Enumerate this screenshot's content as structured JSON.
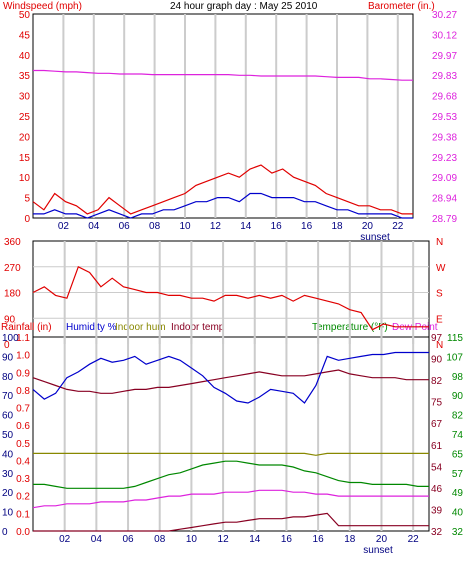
{
  "colors": {
    "red": "#e00000",
    "blue": "#0000cc",
    "magenta": "#dd22dd",
    "olive": "#888800",
    "green": "#008800",
    "maroon": "#880022",
    "purple": "#6600aa",
    "navy": "#000080",
    "grid": "#cccccc",
    "text": "#000000"
  },
  "chart_data": [
    {
      "type": "line",
      "title": "24 hour graph day : May 25 2010",
      "ylabel_left": "Windspeed (mph)",
      "ylabel_right": "Barometer (in.)",
      "y_left_ticks": [
        "50",
        "45",
        "40",
        "35",
        "30",
        "25",
        "20",
        "15",
        "10",
        "5",
        "0"
      ],
      "y_right_ticks": [
        "30.27",
        "30.12",
        "29.97",
        "29.83",
        "29.68",
        "29.53",
        "29.38",
        "29.23",
        "29.09",
        "28.94",
        "28.79"
      ],
      "ylim_left": [
        0,
        50
      ],
      "ylim_right": [
        28.79,
        30.27
      ],
      "x_ticks": [
        "02",
        "04",
        "06",
        "08",
        "10",
        "12",
        "14",
        "16",
        "16",
        "18",
        "20",
        "22"
      ],
      "x_label": "sunset",
      "series": [
        {
          "name": "Windspeed (mph)",
          "color": "red",
          "values": [
            4,
            2,
            6,
            4,
            3,
            1,
            2,
            5,
            3,
            1,
            2,
            3,
            4,
            5,
            6,
            8,
            9,
            10,
            11,
            10,
            12,
            13,
            11,
            12,
            10,
            9,
            8,
            6,
            5,
            4,
            3,
            3,
            2,
            2,
            1,
            1
          ]
        },
        {
          "name": "Wind gust",
          "color": "blue",
          "values": [
            1,
            1,
            2,
            1,
            1,
            0,
            1,
            2,
            1,
            0,
            1,
            1,
            2,
            2,
            3,
            4,
            4,
            5,
            5,
            4,
            6,
            6,
            5,
            5,
            5,
            4,
            4,
            3,
            2,
            2,
            1,
            1,
            1,
            1,
            0,
            0
          ]
        },
        {
          "name": "Barometer (in.)",
          "color": "magenta",
          "values": [
            29.86,
            29.86,
            29.855,
            29.85,
            29.85,
            29.845,
            29.84,
            29.84,
            29.835,
            29.835,
            29.835,
            29.83,
            29.83,
            29.83,
            29.83,
            29.83,
            29.83,
            29.83,
            29.83,
            29.825,
            29.825,
            29.82,
            29.82,
            29.82,
            29.82,
            29.82,
            29.82,
            29.815,
            29.81,
            29.81,
            29.81,
            29.8,
            29.8,
            29.795,
            29.79,
            29.79
          ]
        }
      ]
    },
    {
      "type": "line",
      "y_left_ticks": [
        "360",
        "270",
        "180",
        "90",
        "0"
      ],
      "y_right_ticks": [
        "N",
        "W",
        "S",
        "E",
        "N"
      ],
      "ylim": [
        0,
        360
      ],
      "series": [
        {
          "name": "Wind direction",
          "color": "red",
          "values": [
            180,
            200,
            170,
            160,
            270,
            250,
            200,
            230,
            200,
            190,
            180,
            180,
            170,
            170,
            160,
            160,
            150,
            170,
            170,
            160,
            170,
            160,
            170,
            150,
            170,
            160,
            150,
            140,
            120,
            110,
            50,
            70,
            60,
            60,
            60,
            60
          ]
        }
      ]
    },
    {
      "type": "line",
      "legend": [
        "Rainfall (in)",
        "Humidity %",
        "Indoor hum",
        "Indoor temp",
        "Temperature (°F)",
        "Dew Point"
      ],
      "y_left_ticks": [
        "100",
        "90",
        "80",
        "70",
        "60",
        "50",
        "40",
        "30",
        "20",
        "10",
        "0"
      ],
      "y_rain_ticks": [
        "1.1",
        "1.0",
        "0.9",
        "0.8",
        "0.7",
        "0.6",
        "0.5",
        "0.4",
        "0.3",
        "0.2",
        "0.1",
        "0.0"
      ],
      "y_right_ticks_a": [
        "115",
        "107",
        "98",
        "90",
        "82",
        "74",
        "65",
        "57",
        "49",
        "40",
        "32"
      ],
      "y_right_ticks_b": [
        "97",
        "90",
        "82",
        "75",
        "67",
        "61",
        "54",
        "46",
        "39",
        "32"
      ],
      "ylim_left": [
        0,
        100
      ],
      "ylim_right": [
        32,
        115
      ],
      "x_ticks": [
        "02",
        "04",
        "06",
        "08",
        "10",
        "12",
        "14",
        "16",
        "16",
        "18",
        "20",
        "22"
      ],
      "x_label": "sunset",
      "series": [
        {
          "name": "Humidity %",
          "color": "blue",
          "values": [
            73,
            68,
            71,
            79,
            82,
            86,
            89,
            87,
            88,
            90,
            86,
            88,
            90,
            88,
            84,
            80,
            74,
            71,
            67,
            66,
            69,
            73,
            72,
            71,
            66,
            75,
            90,
            88,
            89,
            90,
            91,
            91,
            92,
            92,
            92,
            92
          ]
        },
        {
          "name": "Indoor hum",
          "color": "olive",
          "values": [
            40,
            40,
            40,
            40,
            40,
            40,
            40,
            40,
            40,
            40,
            40,
            40,
            40,
            40,
            40,
            40,
            40,
            40,
            40,
            40,
            40,
            40,
            40,
            40,
            40,
            39,
            40,
            40,
            40,
            40,
            40,
            40,
            40,
            40,
            40,
            40
          ]
        },
        {
          "name": "Indoor temp",
          "color": "maroon",
          "values": [
            79,
            77,
            75,
            73,
            72,
            72,
            71,
            71,
            72,
            73,
            73,
            74,
            74,
            75,
            76,
            77,
            78,
            79,
            80,
            81,
            82,
            81,
            80,
            80,
            80,
            81,
            82,
            83,
            81,
            80,
            79,
            79,
            79,
            78,
            78,
            78
          ]
        },
        {
          "name": "Temperature (°F)",
          "color": "green",
          "values": [
            24,
            24,
            23,
            22,
            22,
            22,
            22,
            22,
            22,
            23,
            25,
            27,
            29,
            30,
            32,
            34,
            35,
            36,
            36,
            35,
            34,
            34,
            34,
            33,
            31,
            30,
            28,
            26,
            25,
            25,
            24,
            24,
            24,
            24,
            23,
            23
          ]
        },
        {
          "name": "Dew Point",
          "color": "magenta",
          "values": [
            12,
            13,
            13,
            14,
            14,
            14,
            15,
            15,
            15,
            16,
            16,
            17,
            18,
            18,
            19,
            19,
            19,
            20,
            20,
            20,
            21,
            21,
            21,
            20,
            20,
            19,
            19,
            18,
            18,
            18,
            18,
            18,
            18,
            18,
            18,
            18
          ]
        },
        {
          "name": "Rainfall (in)",
          "color": "maroon_rain",
          "values": [
            0,
            0,
            0,
            0,
            0,
            0,
            0,
            0,
            0,
            0,
            0,
            0,
            0,
            0.01,
            0.02,
            0.03,
            0.04,
            0.05,
            0.05,
            0.06,
            0.07,
            0.07,
            0.07,
            0.08,
            0.08,
            0.09,
            0.1,
            0.03,
            0.03,
            0.03,
            0.03,
            0.03,
            0.03,
            0.03,
            0.03,
            0.03
          ]
        }
      ]
    }
  ]
}
